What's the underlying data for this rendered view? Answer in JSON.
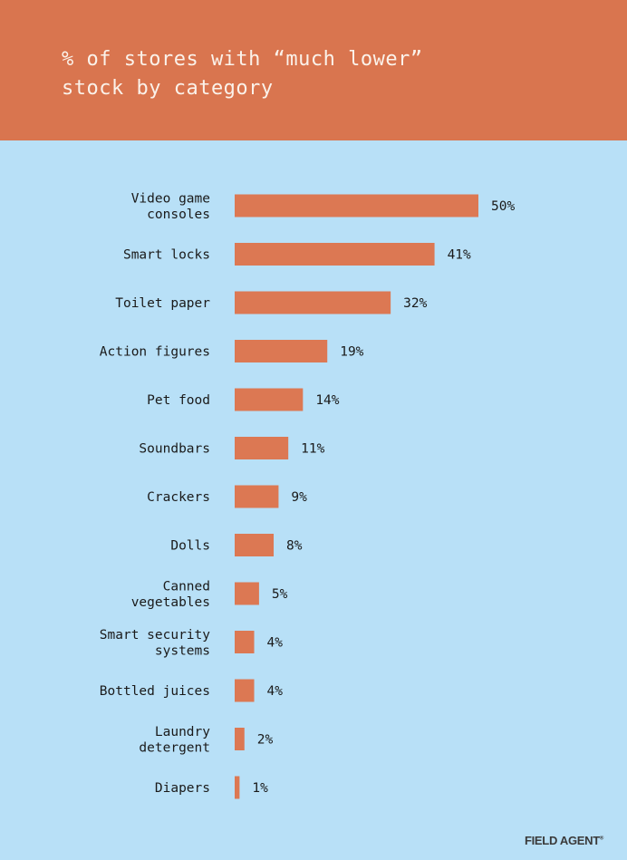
{
  "header": {
    "title_line1": "% of stores with “much lower”",
    "title_line2": "stock by category"
  },
  "colors": {
    "header_bg": "#d9754f",
    "panel_bg": "#b8e0f7",
    "bar": "#dc7853",
    "text": "#1a1a1a"
  },
  "chart_data": {
    "type": "bar",
    "orientation": "horizontal",
    "title": "% of stores with “much lower” stock by category",
    "categories": [
      [
        "Video game",
        "consoles"
      ],
      [
        "Smart locks"
      ],
      [
        "Toilet paper"
      ],
      [
        "Action figures"
      ],
      [
        "Pet food"
      ],
      [
        "Soundbars"
      ],
      [
        "Crackers"
      ],
      [
        "Dolls"
      ],
      [
        "Canned",
        "vegetables"
      ],
      [
        "Smart security",
        "systems"
      ],
      [
        "Bottled juices"
      ],
      [
        "Laundry",
        "detergent"
      ],
      [
        "Diapers"
      ]
    ],
    "values": [
      50,
      41,
      32,
      19,
      14,
      11,
      9,
      8,
      5,
      4,
      4,
      2,
      1
    ],
    "value_labels": [
      "50%",
      "41%",
      "32%",
      "19%",
      "14%",
      "11%",
      "9%",
      "8%",
      "5%",
      "4%",
      "4%",
      "2%",
      "1%"
    ],
    "unit": "%",
    "xlim": [
      0,
      50
    ],
    "grid": false,
    "legend": "none"
  },
  "footer": {
    "logo_text": "FIELD AGENT",
    "logo_mark": "®"
  }
}
